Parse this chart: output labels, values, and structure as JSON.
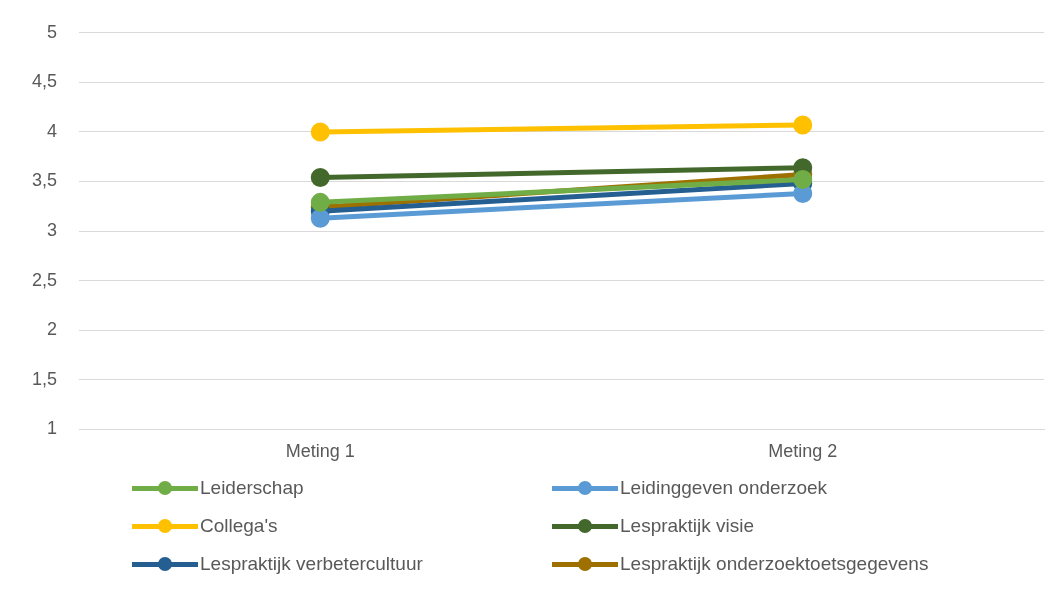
{
  "chart_data": {
    "type": "line",
    "categories": [
      "Meting 1",
      "Meting 2"
    ],
    "series": [
      {
        "name": "Leiderschap",
        "color": "#70ad47",
        "values": [
          3.29,
          3.52
        ]
      },
      {
        "name": "Leidinggeven onderzoek",
        "color": "#5b9bd5",
        "values": [
          3.13,
          3.38
        ]
      },
      {
        "name": "Collega's",
        "color": "#ffc000",
        "values": [
          4.0,
          4.07
        ]
      },
      {
        "name": "Lespraktijk visie",
        "color": "#43682b",
        "values": [
          3.54,
          3.64
        ]
      },
      {
        "name": "Lespraktijk verbetercultuur",
        "color": "#255e91",
        "values": [
          3.2,
          3.48
        ]
      },
      {
        "name": "Lespraktijk onderzoektoetsgegevens",
        "color": "#9e7000",
        "values": [
          3.24,
          3.57
        ]
      }
    ],
    "ylim": [
      1,
      5
    ],
    "yticks": [
      {
        "value": 1,
        "label": "1"
      },
      {
        "value": 1.5,
        "label": "1,5"
      },
      {
        "value": 2,
        "label": "2"
      },
      {
        "value": 2.5,
        "label": "2,5"
      },
      {
        "value": 3,
        "label": "3"
      },
      {
        "value": 3.5,
        "label": "3,5"
      },
      {
        "value": 4,
        "label": "4"
      },
      {
        "value": 4.5,
        "label": "4,5"
      },
      {
        "value": 5,
        "label": "5"
      }
    ],
    "grid": "y",
    "legend": "bottom",
    "marker": "circle",
    "line_style": "solid"
  }
}
